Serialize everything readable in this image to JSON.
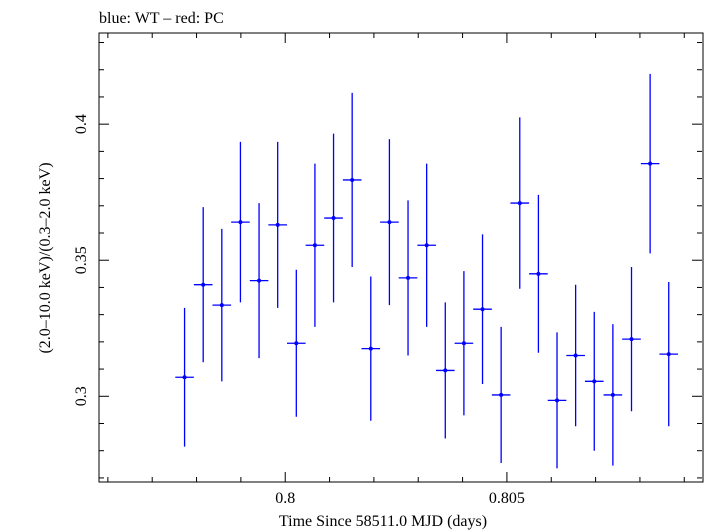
{
  "header": {
    "title": "blue: WT – red: PC"
  },
  "chart_data": {
    "type": "scatter",
    "title": "blue: WT – red: PC",
    "xlabel": "Time Since 58511.0 MJD (days)",
    "ylabel": "(2.0–10.0 keV)/(0.3–2.0 keV)",
    "xlim": [
      0.7958,
      0.8094
    ],
    "ylim": [
      0.2685,
      0.4335
    ],
    "x_ticks": [
      {
        "value": 0.8,
        "label": "0.8"
      },
      {
        "value": 0.805,
        "label": "0.805"
      }
    ],
    "y_ticks": [
      {
        "value": 0.3,
        "label": "0.3"
      },
      {
        "value": 0.35,
        "label": "0.35"
      },
      {
        "value": 0.4,
        "label": "0.4"
      }
    ],
    "grid": false,
    "colors": {
      "WT": "#0000ff",
      "axis": "#000000"
    },
    "series": [
      {
        "name": "WT",
        "color": "#0000ff",
        "x_halfwidth": 0.00021,
        "points": [
          {
            "x": 0.79773,
            "y": 0.307,
            "yerr": 0.0255
          },
          {
            "x": 0.79815,
            "y": 0.341,
            "yerr": 0.0285
          },
          {
            "x": 0.79857,
            "y": 0.3335,
            "yerr": 0.028
          },
          {
            "x": 0.79899,
            "y": 0.364,
            "yerr": 0.0295
          },
          {
            "x": 0.79941,
            "y": 0.3425,
            "yerr": 0.0285
          },
          {
            "x": 0.79983,
            "y": 0.363,
            "yerr": 0.0305
          },
          {
            "x": 0.80025,
            "y": 0.3195,
            "yerr": 0.027
          },
          {
            "x": 0.80067,
            "y": 0.3555,
            "yerr": 0.03
          },
          {
            "x": 0.80109,
            "y": 0.3655,
            "yerr": 0.031
          },
          {
            "x": 0.80151,
            "y": 0.3795,
            "yerr": 0.032
          },
          {
            "x": 0.80193,
            "y": 0.3175,
            "yerr": 0.0265
          },
          {
            "x": 0.80235,
            "y": 0.364,
            "yerr": 0.0305
          },
          {
            "x": 0.80277,
            "y": 0.3435,
            "yerr": 0.0285
          },
          {
            "x": 0.80319,
            "y": 0.3555,
            "yerr": 0.03
          },
          {
            "x": 0.80361,
            "y": 0.3095,
            "yerr": 0.025
          },
          {
            "x": 0.80403,
            "y": 0.3195,
            "yerr": 0.0265
          },
          {
            "x": 0.80445,
            "y": 0.332,
            "yerr": 0.0275
          },
          {
            "x": 0.80487,
            "y": 0.3005,
            "yerr": 0.025
          },
          {
            "x": 0.80529,
            "y": 0.371,
            "yerr": 0.0315
          },
          {
            "x": 0.80571,
            "y": 0.345,
            "yerr": 0.029
          },
          {
            "x": 0.80613,
            "y": 0.2985,
            "yerr": 0.025
          },
          {
            "x": 0.80655,
            "y": 0.315,
            "yerr": 0.026
          },
          {
            "x": 0.80697,
            "y": 0.3055,
            "yerr": 0.0255
          },
          {
            "x": 0.80739,
            "y": 0.3005,
            "yerr": 0.026
          },
          {
            "x": 0.80781,
            "y": 0.321,
            "yerr": 0.0265
          },
          {
            "x": 0.80823,
            "y": 0.3855,
            "yerr": 0.033
          },
          {
            "x": 0.80865,
            "y": 0.3155,
            "yerr": 0.0265
          }
        ]
      }
    ]
  }
}
